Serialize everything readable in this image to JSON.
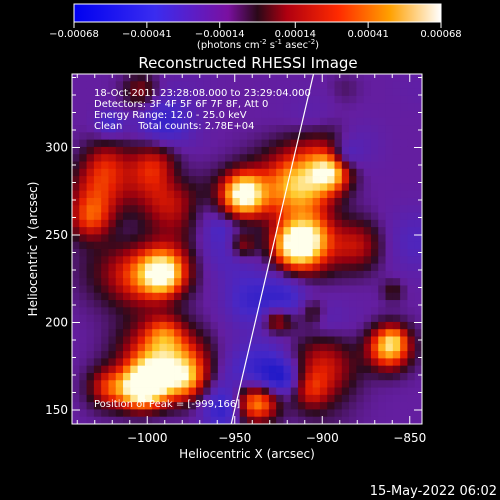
{
  "chart_data": {
    "type": "heatmap",
    "title": "Reconstructed RHESSI Image",
    "colorbar": {
      "ticks": [
        "-0.00068",
        "-0.00041",
        "-0.00014",
        "0.00014",
        "0.00041",
        "0.00068"
      ],
      "range": [
        -0.00068,
        0.00068
      ],
      "unit_label": "(photons cm",
      "unit_sup1": "-2",
      "unit_mid": " s",
      "unit_sup2": "-1",
      "unit_mid2": " asec",
      "unit_sup3": "-2",
      "unit_end": ")"
    },
    "info": [
      "18-Oct-2011 23:28:08.000 to 23:29:04.000",
      "Detectors: 3F 4F 5F 6F 7F 8F, Att 0",
      "Energy Range: 12.0 - 25.0 keV",
      "Clean     Total counts: 2.78E+04"
    ],
    "peak_label": "Position of Peak = [-999,166]",
    "xlabel": "Heliocentric X (arcsec)",
    "ylabel": "Heliocentric Y (arcsec)",
    "xlim": [
      -1043,
      -843
    ],
    "ylim": [
      142,
      342
    ],
    "xticks": [
      -1000,
      -950,
      -900,
      -850
    ],
    "xtick_labels": [
      "−1000",
      "−950",
      "−900",
      "−850"
    ],
    "yticks": [
      150,
      200,
      250,
      300
    ],
    "ytick_labels": [
      "150",
      "200",
      "250",
      "300"
    ],
    "limb_line": {
      "x": [
        -952,
        -905
      ],
      "y": [
        142,
        342
      ]
    },
    "colors": {
      "background": "#000000",
      "axes": "#ffffff",
      "limb": "#ffffff"
    }
  },
  "timestamp": "15-May-2022 06:02"
}
